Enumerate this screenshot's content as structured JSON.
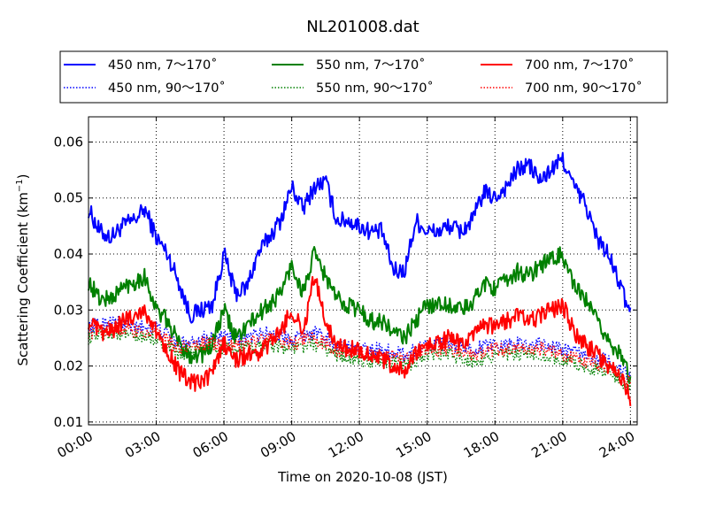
{
  "chart_data": {
    "type": "line",
    "title": "NL201008.dat",
    "xlabel": "Time on 2020-10-08 (JST)",
    "ylabel_main": "Scattering Coefficient (km",
    "ylabel_sup": "−1",
    "ylabel_close": ")",
    "x_ticks": [
      "00:00",
      "03:00",
      "06:00",
      "09:00",
      "12:00",
      "15:00",
      "18:00",
      "21:00",
      "24:00"
    ],
    "x_tick_hours": [
      0,
      3,
      6,
      9,
      12,
      15,
      18,
      21,
      24
    ],
    "xlim_hours": [
      0,
      24.3
    ],
    "y_ticks": [
      "0.01",
      "0.02",
      "0.03",
      "0.04",
      "0.05",
      "0.06"
    ],
    "y_tick_values": [
      0.01,
      0.02,
      0.03,
      0.04,
      0.05,
      0.06
    ],
    "ylim": [
      0.0095,
      0.0645
    ],
    "grid": true,
    "legend_placement": "above plot",
    "series": [
      {
        "name": "450 nm, 7～170˚",
        "color": "#0000ff",
        "style": "solid",
        "hours": [
          0,
          0.5,
          1,
          1.5,
          2,
          2.5,
          3,
          3.5,
          4,
          4.5,
          5,
          5.5,
          6,
          6.5,
          7,
          7.5,
          8,
          8.5,
          9,
          9.5,
          10,
          10.5,
          11,
          11.5,
          12,
          12.5,
          13,
          13.5,
          14,
          14.5,
          15,
          15.5,
          16,
          16.5,
          17,
          17.5,
          18,
          18.5,
          19,
          19.5,
          20,
          20.5,
          21,
          21.5,
          22,
          22.5,
          23,
          23.5,
          24
        ],
        "values": [
          0.048,
          0.044,
          0.043,
          0.045,
          0.046,
          0.048,
          0.043,
          0.04,
          0.035,
          0.029,
          0.03,
          0.031,
          0.04,
          0.033,
          0.034,
          0.04,
          0.043,
          0.046,
          0.052,
          0.048,
          0.052,
          0.053,
          0.046,
          0.046,
          0.045,
          0.044,
          0.044,
          0.037,
          0.037,
          0.046,
          0.044,
          0.044,
          0.045,
          0.044,
          0.046,
          0.051,
          0.05,
          0.052,
          0.055,
          0.056,
          0.053,
          0.055,
          0.057,
          0.052,
          0.049,
          0.043,
          0.04,
          0.035,
          0.029
        ]
      },
      {
        "name": "450 nm, 90～170˚",
        "color": "#0000ff",
        "style": "dotted",
        "hours": [
          0,
          1,
          2,
          3,
          4,
          5,
          6,
          7,
          8,
          9,
          10,
          11,
          12,
          13,
          14,
          15,
          16,
          17,
          18,
          19,
          20,
          21,
          22,
          23,
          24
        ],
        "values": [
          0.027,
          0.028,
          0.027,
          0.027,
          0.024,
          0.025,
          0.025,
          0.025,
          0.026,
          0.025,
          0.026,
          0.024,
          0.023,
          0.023,
          0.022,
          0.024,
          0.024,
          0.023,
          0.024,
          0.024,
          0.024,
          0.023,
          0.022,
          0.021,
          0.018
        ]
      },
      {
        "name": "550 nm, 7～170˚",
        "color": "#008000",
        "style": "solid",
        "hours": [
          0,
          0.5,
          1,
          1.5,
          2,
          2.5,
          3,
          3.5,
          4,
          4.5,
          5,
          5.5,
          6,
          6.5,
          7,
          7.5,
          8,
          8.5,
          9,
          9.5,
          10,
          10.5,
          11,
          11.5,
          12,
          12.5,
          13,
          13.5,
          14,
          14.5,
          15,
          15.5,
          16,
          16.5,
          17,
          17.5,
          18,
          18.5,
          19,
          19.5,
          20,
          20.5,
          21,
          21.5,
          22,
          22.5,
          23,
          23.5,
          24
        ],
        "values": [
          0.035,
          0.032,
          0.032,
          0.034,
          0.035,
          0.036,
          0.03,
          0.028,
          0.024,
          0.022,
          0.022,
          0.024,
          0.03,
          0.025,
          0.027,
          0.029,
          0.031,
          0.033,
          0.038,
          0.033,
          0.04,
          0.036,
          0.032,
          0.031,
          0.03,
          0.028,
          0.028,
          0.026,
          0.025,
          0.028,
          0.031,
          0.031,
          0.031,
          0.03,
          0.031,
          0.035,
          0.034,
          0.035,
          0.037,
          0.036,
          0.038,
          0.039,
          0.04,
          0.034,
          0.032,
          0.028,
          0.025,
          0.022,
          0.018
        ]
      },
      {
        "name": "550 nm, 90～170˚",
        "color": "#008000",
        "style": "dotted",
        "hours": [
          0,
          1,
          2,
          3,
          4,
          5,
          6,
          7,
          8,
          9,
          10,
          11,
          12,
          13,
          14,
          15,
          16,
          17,
          18,
          19,
          20,
          21,
          22,
          23,
          24
        ],
        "values": [
          0.025,
          0.026,
          0.025,
          0.025,
          0.022,
          0.023,
          0.023,
          0.023,
          0.024,
          0.023,
          0.024,
          0.022,
          0.021,
          0.021,
          0.02,
          0.022,
          0.022,
          0.021,
          0.022,
          0.022,
          0.022,
          0.021,
          0.02,
          0.019,
          0.016
        ]
      },
      {
        "name": "700 nm, 7～170˚",
        "color": "#ff0000",
        "style": "solid",
        "hours": [
          0,
          0.5,
          1,
          1.5,
          2,
          2.5,
          3,
          3.5,
          4,
          4.5,
          5,
          5.5,
          6,
          6.5,
          7,
          7.5,
          8,
          8.5,
          9,
          9.5,
          10,
          10.5,
          11,
          11.5,
          12,
          12.5,
          13,
          13.5,
          14,
          14.5,
          15,
          15.5,
          16,
          16.5,
          17,
          17.5,
          18,
          18.5,
          19,
          19.5,
          20,
          20.5,
          21,
          21.5,
          22,
          22.5,
          23,
          23.5,
          24
        ],
        "values": [
          0.028,
          0.026,
          0.026,
          0.028,
          0.029,
          0.03,
          0.026,
          0.023,
          0.019,
          0.017,
          0.017,
          0.019,
          0.024,
          0.021,
          0.022,
          0.022,
          0.024,
          0.026,
          0.03,
          0.026,
          0.036,
          0.028,
          0.024,
          0.023,
          0.023,
          0.022,
          0.021,
          0.02,
          0.019,
          0.022,
          0.024,
          0.024,
          0.025,
          0.024,
          0.025,
          0.027,
          0.027,
          0.028,
          0.029,
          0.028,
          0.029,
          0.03,
          0.031,
          0.026,
          0.024,
          0.022,
          0.02,
          0.019,
          0.014
        ]
      },
      {
        "name": "700 nm, 90～170˚",
        "color": "#ff0000",
        "style": "dotted",
        "hours": [
          0,
          1,
          2,
          3,
          4,
          5,
          6,
          7,
          8,
          9,
          10,
          11,
          12,
          13,
          14,
          15,
          16,
          17,
          18,
          19,
          20,
          21,
          22,
          23,
          24
        ],
        "values": [
          0.026,
          0.027,
          0.026,
          0.026,
          0.023,
          0.024,
          0.024,
          0.024,
          0.025,
          0.024,
          0.025,
          0.023,
          0.022,
          0.022,
          0.021,
          0.023,
          0.023,
          0.022,
          0.023,
          0.023,
          0.023,
          0.022,
          0.021,
          0.02,
          0.017
        ]
      }
    ]
  }
}
